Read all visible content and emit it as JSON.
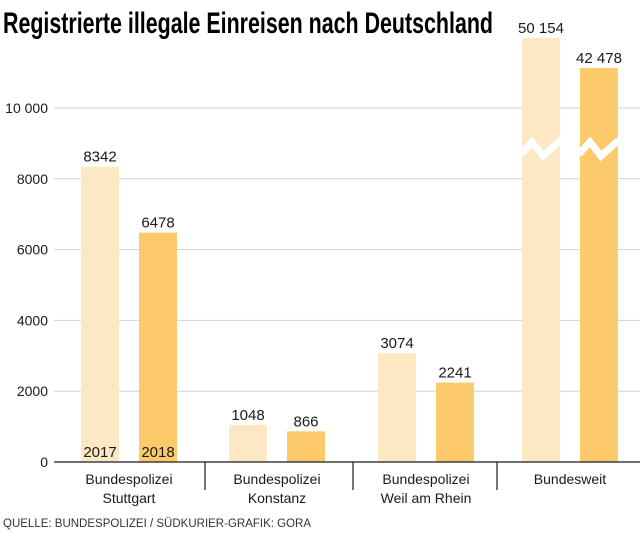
{
  "chart_data": {
    "type": "bar",
    "title": "Registrierte illegale Einreisen nach Deutschland",
    "source": "QUELLE: BUNDESPOLIZEI / SÜDKURIER-GRAFIK: GORA",
    "categories": [
      [
        "Bundespolizei",
        "Stuttgart"
      ],
      [
        "Bundespolizei",
        "Konstanz"
      ],
      [
        "Bundespolizei",
        "Weil am Rhein"
      ],
      [
        "Bundesweit"
      ]
    ],
    "series": [
      {
        "name": "2017",
        "color": "#fde8c4",
        "values": [
          8342,
          1048,
          3074,
          50154
        ],
        "labels": [
          "8342",
          "1048",
          "3074",
          "50 154"
        ]
      },
      {
        "name": "2018",
        "color": "#fcca6a",
        "values": [
          6478,
          866,
          2241,
          42478
        ],
        "labels": [
          "6478",
          "866",
          "2241",
          "42 478"
        ]
      }
    ],
    "yticks": [
      {
        "value": 0,
        "label": "0"
      },
      {
        "value": 2000,
        "label": "2000"
      },
      {
        "value": 4000,
        "label": "4000"
      },
      {
        "value": 6000,
        "label": "6000"
      },
      {
        "value": 8000,
        "label": "8000"
      },
      {
        "value": 10000,
        "label": "10 000"
      }
    ],
    "ylim": [
      0,
      10000
    ],
    "axis_break": true,
    "grid": true,
    "legend": "inside-first-bars"
  }
}
